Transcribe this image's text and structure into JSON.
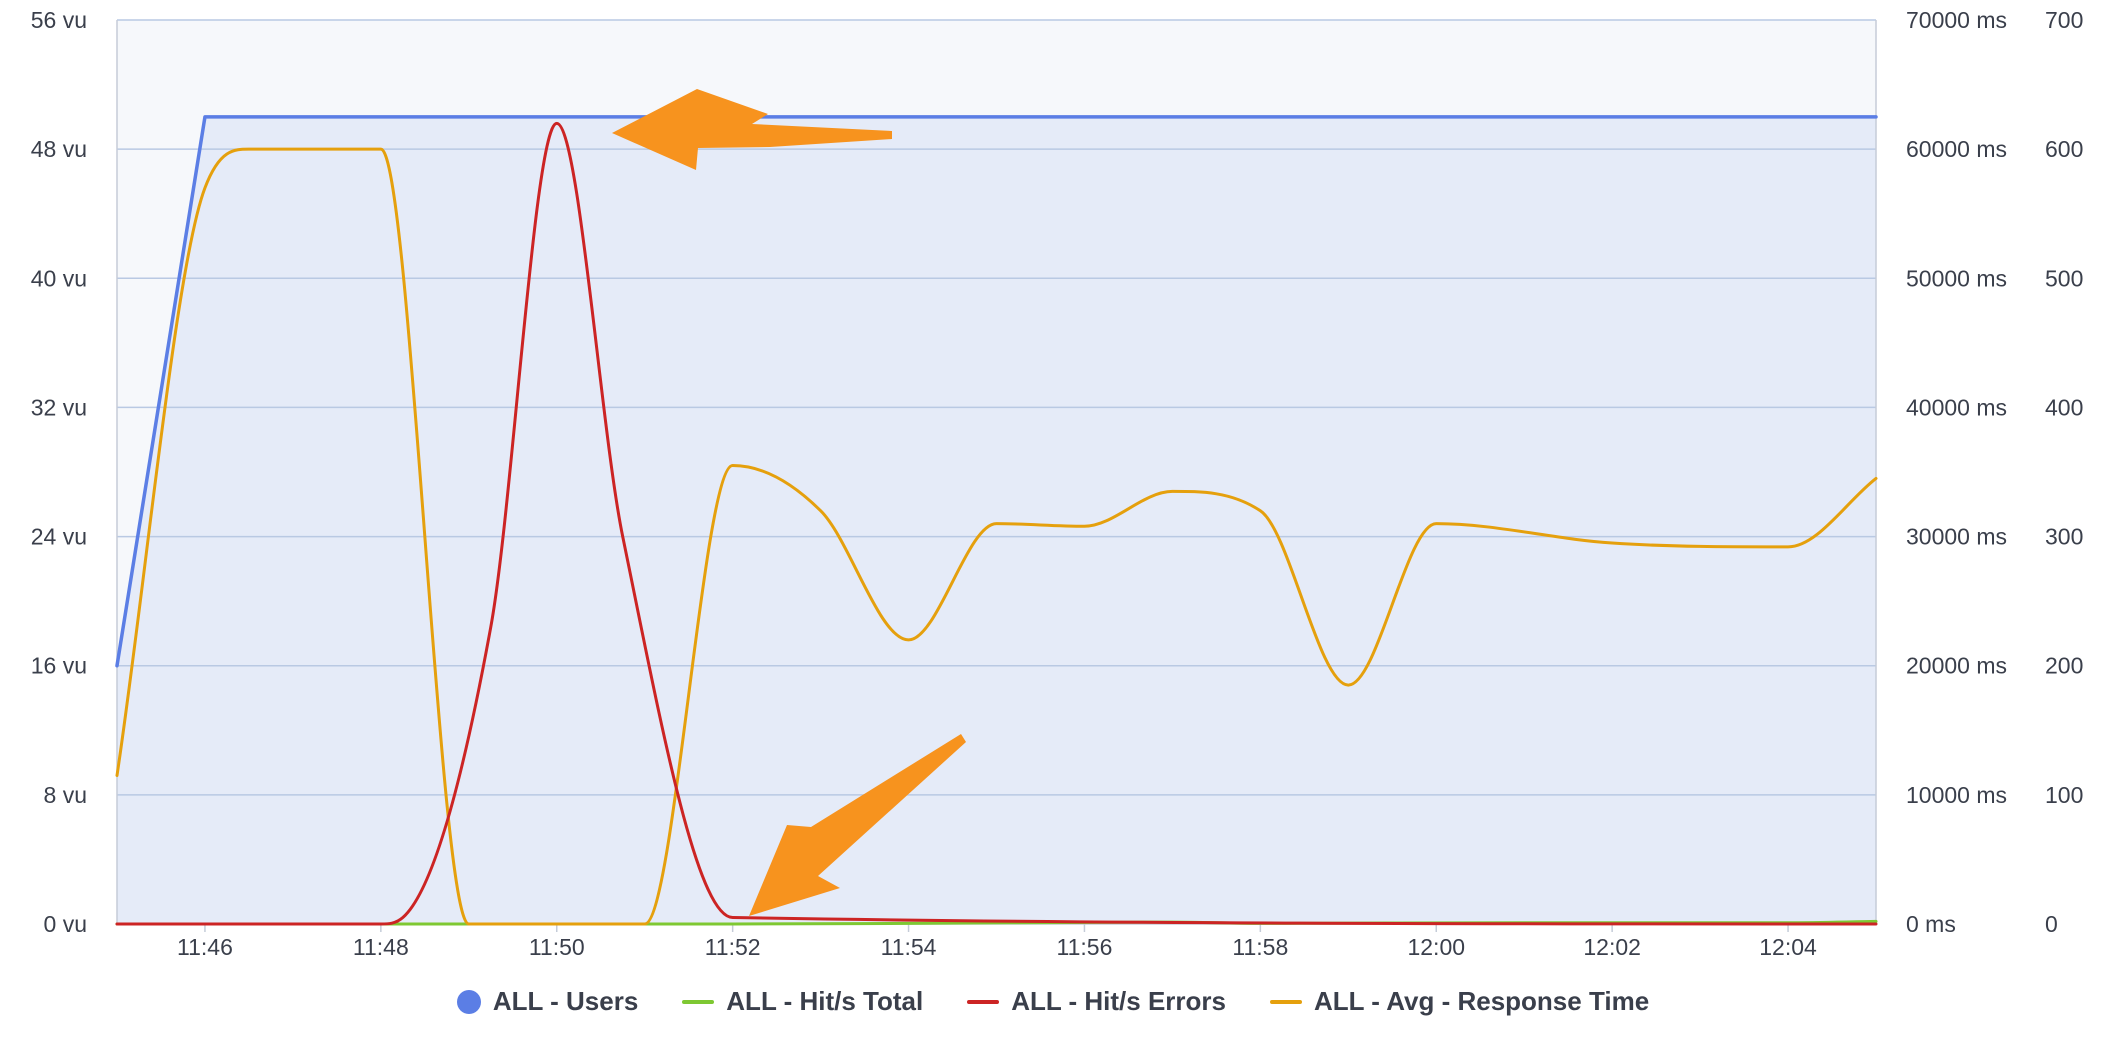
{
  "chart_data": {
    "type": "line",
    "x_ticks": [
      "11:46",
      "11:48",
      "11:50",
      "11:52",
      "11:54",
      "11:56",
      "11:58",
      "12:00",
      "12:02",
      "12:04"
    ],
    "xlim": [
      "11:45",
      "12:05"
    ],
    "y_left_ticks": [
      "56 vu",
      "48 vu",
      "40 vu",
      "32 vu",
      "24 vu",
      "16 vu",
      "8 vu",
      "0 vu"
    ],
    "y_left_range": [
      0,
      56
    ],
    "y_right1_ticks": [
      "70000 ms",
      "60000 ms",
      "50000 ms",
      "40000 ms",
      "30000 ms",
      "20000 ms",
      "10000 ms",
      "0 ms"
    ],
    "y_right1_range": [
      0,
      70000
    ],
    "y_right2_ticks": [
      "700",
      "600",
      "500",
      "400",
      "300",
      "200",
      "100",
      "0"
    ],
    "y_right2_range": [
      0,
      700
    ],
    "grid": true,
    "legend_position": "bottom",
    "series": [
      {
        "name": "ALL - Users",
        "axis": "left",
        "color": "#5b7ee5",
        "marker": "dot",
        "points": [
          [
            "11:45",
            16
          ],
          [
            "11:46",
            50
          ],
          [
            "12:05",
            50
          ]
        ]
      },
      {
        "name": "ALL - Hit/s Total",
        "axis": "right2",
        "color": "#7ec832",
        "marker": "line",
        "points": [
          [
            "11:45",
            0
          ],
          [
            "11:52",
            0
          ],
          [
            "11:54",
            0.5
          ],
          [
            "11:57",
            1.5
          ],
          [
            "11:58",
            0.5
          ],
          [
            "12:01",
            1
          ],
          [
            "12:04",
            1
          ],
          [
            "12:05",
            2
          ]
        ]
      },
      {
        "name": "ALL - Hit/s Errors",
        "axis": "right2",
        "color": "#cc2424",
        "marker": "line",
        "points": [
          [
            "11:45",
            0
          ],
          [
            "11:48",
            0
          ],
          [
            "11:48:15",
            5
          ],
          [
            "11:49:15",
            230
          ],
          [
            "11:50",
            620
          ],
          [
            "11:50:45",
            300
          ],
          [
            "11:52",
            5
          ],
          [
            "12:05",
            0
          ]
        ]
      },
      {
        "name": "ALL - Avg - Response Time",
        "axis": "right1",
        "color": "#e5a00d",
        "marker": "line",
        "points": [
          [
            "11:45",
            11500
          ],
          [
            "11:46",
            57000
          ],
          [
            "11:46:30",
            60000
          ],
          [
            "11:48",
            60000
          ],
          [
            "11:49",
            0
          ],
          [
            "11:51",
            0
          ],
          [
            "11:52",
            35500
          ],
          [
            "11:53",
            32000
          ],
          [
            "11:54",
            22000
          ],
          [
            "11:55",
            31000
          ],
          [
            "11:56",
            30800
          ],
          [
            "11:57",
            33500
          ],
          [
            "11:58",
            32000
          ],
          [
            "11:59",
            18500
          ],
          [
            "12:00",
            31000
          ],
          [
            "12:02",
            29500
          ],
          [
            "12:04",
            29200
          ],
          [
            "12:05",
            34500
          ]
        ]
      }
    ]
  }
}
